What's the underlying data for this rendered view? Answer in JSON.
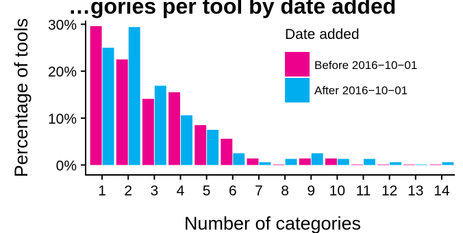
{
  "chart_data": {
    "type": "bar",
    "title": "…gories per tool by date added",
    "xlabel": "Number of categories",
    "ylabel": "Percentage of tools",
    "categories": [
      "1",
      "2",
      "3",
      "4",
      "5",
      "6",
      "7",
      "8",
      "9",
      "10",
      "11",
      "12",
      "13",
      "14"
    ],
    "ylim": [
      0,
      30
    ],
    "yticks": [
      0,
      10,
      20,
      30
    ],
    "ytick_labels": [
      "0%",
      "10%",
      "20%",
      "30%"
    ],
    "grid": false,
    "legend": {
      "title": "Date added",
      "placement": "top-right"
    },
    "series": [
      {
        "name": "Before 2016−10−01",
        "color": "#ec008c",
        "values": [
          29.6,
          22.5,
          14.1,
          15.5,
          8.5,
          5.6,
          1.4,
          0.0,
          1.4,
          1.4,
          0.0,
          0.0,
          0.0,
          0.0
        ]
      },
      {
        "name": "After 2016−10−01",
        "color": "#00aeef",
        "values": [
          25.0,
          29.4,
          16.9,
          10.6,
          7.5,
          2.5,
          0.6,
          1.3,
          2.5,
          1.3,
          1.3,
          0.6,
          0.0,
          0.6
        ]
      }
    ]
  }
}
